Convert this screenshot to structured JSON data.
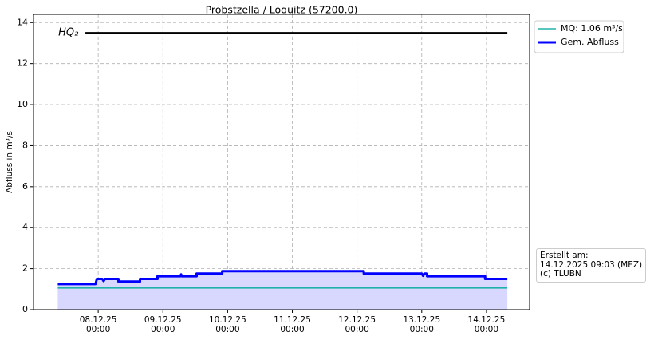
{
  "chart_data": {
    "type": "line",
    "title": "Probstzella / Loquitz (57200.0)",
    "y_label": "Abfluss in m³/s",
    "xlim": [
      "07.12.25 00:00",
      "14.12.25 16:00"
    ],
    "xticks": [
      {
        "value": "08.12.25 00:00",
        "label": "08.12.25\n00:00"
      },
      {
        "value": "09.12.25 00:00",
        "label": "09.12.25\n00:00"
      },
      {
        "value": "10.12.25 00:00",
        "label": "10.12.25\n00:00"
      },
      {
        "value": "11.12.25 00:00",
        "label": "11.12.25\n00:00"
      },
      {
        "value": "12.12.25 00:00",
        "label": "12.12.25\n00:00"
      },
      {
        "value": "13.12.25 00:00",
        "label": "13.12.25\n00:00"
      },
      {
        "value": "14.12.25 00:00",
        "label": "14.12.25\n00:00"
      }
    ],
    "ylim": [
      0,
      14.4
    ],
    "yticks": [
      0,
      2,
      4,
      6,
      8,
      10,
      12,
      14
    ],
    "grid": true,
    "legend": "outside-upper-right",
    "series": [
      {
        "name": "MQ: 1.06 m³/s",
        "color": "#20b2aa",
        "width": 1.6,
        "x": [
          "07.12.25 09:00",
          "14.12.25 07:45"
        ],
        "values": [
          1.06,
          1.06
        ]
      },
      {
        "name": "Gem. Abfluss",
        "color": "#0000ff",
        "width": 3,
        "fill": "#d8d8ff",
        "x": [
          "07.12.25 09:00",
          "07.12.25 23:00",
          "07.12.25 23:30",
          "08.12.25 01:30",
          "08.12.25 02:00",
          "08.12.25 02:30",
          "08.12.25 07:30",
          "08.12.25 07:30",
          "08.12.25 15:30",
          "08.12.25 15:30",
          "08.12.25 22:00",
          "08.12.25 22:00",
          "09.12.25 06:30",
          "09.12.25 06:45",
          "09.12.25 07:00",
          "09.12.25 12:30",
          "09.12.25 12:30",
          "09.12.25 22:00",
          "09.12.25 22:00",
          "12.12.25 02:30",
          "12.12.25 02:30",
          "13.12.25 00:00",
          "13.12.25 00:30",
          "13.12.25 01:00",
          "13.12.25 02:00",
          "13.12.25 02:00",
          "13.12.25 23:30",
          "13.12.25 23:30",
          "14.12.25 07:45"
        ],
        "values": [
          1.25,
          1.25,
          1.5,
          1.5,
          1.4,
          1.5,
          1.5,
          1.37,
          1.37,
          1.5,
          1.5,
          1.63,
          1.63,
          1.72,
          1.63,
          1.63,
          1.76,
          1.76,
          1.88,
          1.88,
          1.76,
          1.76,
          1.65,
          1.76,
          1.76,
          1.63,
          1.63,
          1.5,
          1.5
        ]
      }
    ],
    "reference_lines": [
      {
        "label": "HQ₂",
        "color": "#000000",
        "x": [
          "07.12.25 19:15",
          "14.12.25 07:45"
        ],
        "values": [
          13.5,
          13.5
        ]
      }
    ],
    "note": [
      "Erstellt am:",
      "14.12.2025 09:03 (MEZ)",
      "(c) TLUBN"
    ]
  }
}
